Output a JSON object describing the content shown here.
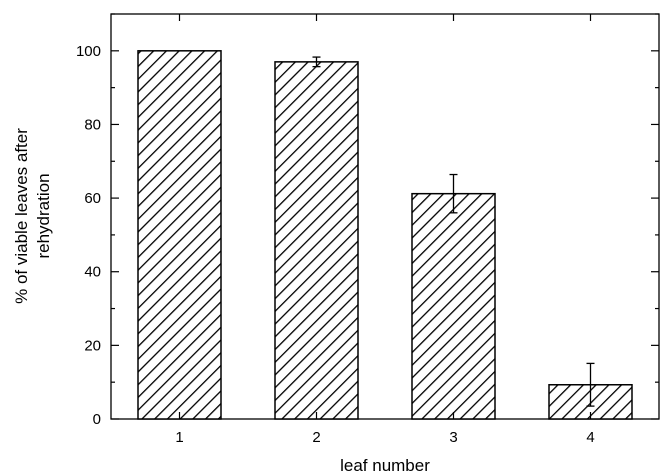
{
  "chart_data": {
    "type": "bar",
    "categories": [
      "1",
      "2",
      "3",
      "4"
    ],
    "values": [
      100,
      97,
      61.2,
      9.3
    ],
    "error": [
      0,
      1.3,
      5.2,
      5.8
    ],
    "xlabel": "leaf number",
    "ylabel_lines": [
      "% of viable leaves after",
      "rehydration"
    ],
    "ylim": [
      0,
      110
    ],
    "yticks": [
      0,
      20,
      40,
      60,
      80,
      100
    ],
    "yticks_minor": [
      10,
      30,
      50,
      70,
      90,
      110
    ],
    "fill": "diagonal-hatch",
    "colors": {
      "bar_stroke": "#000000",
      "hatch": "#000000",
      "background": "#ffffff"
    }
  }
}
